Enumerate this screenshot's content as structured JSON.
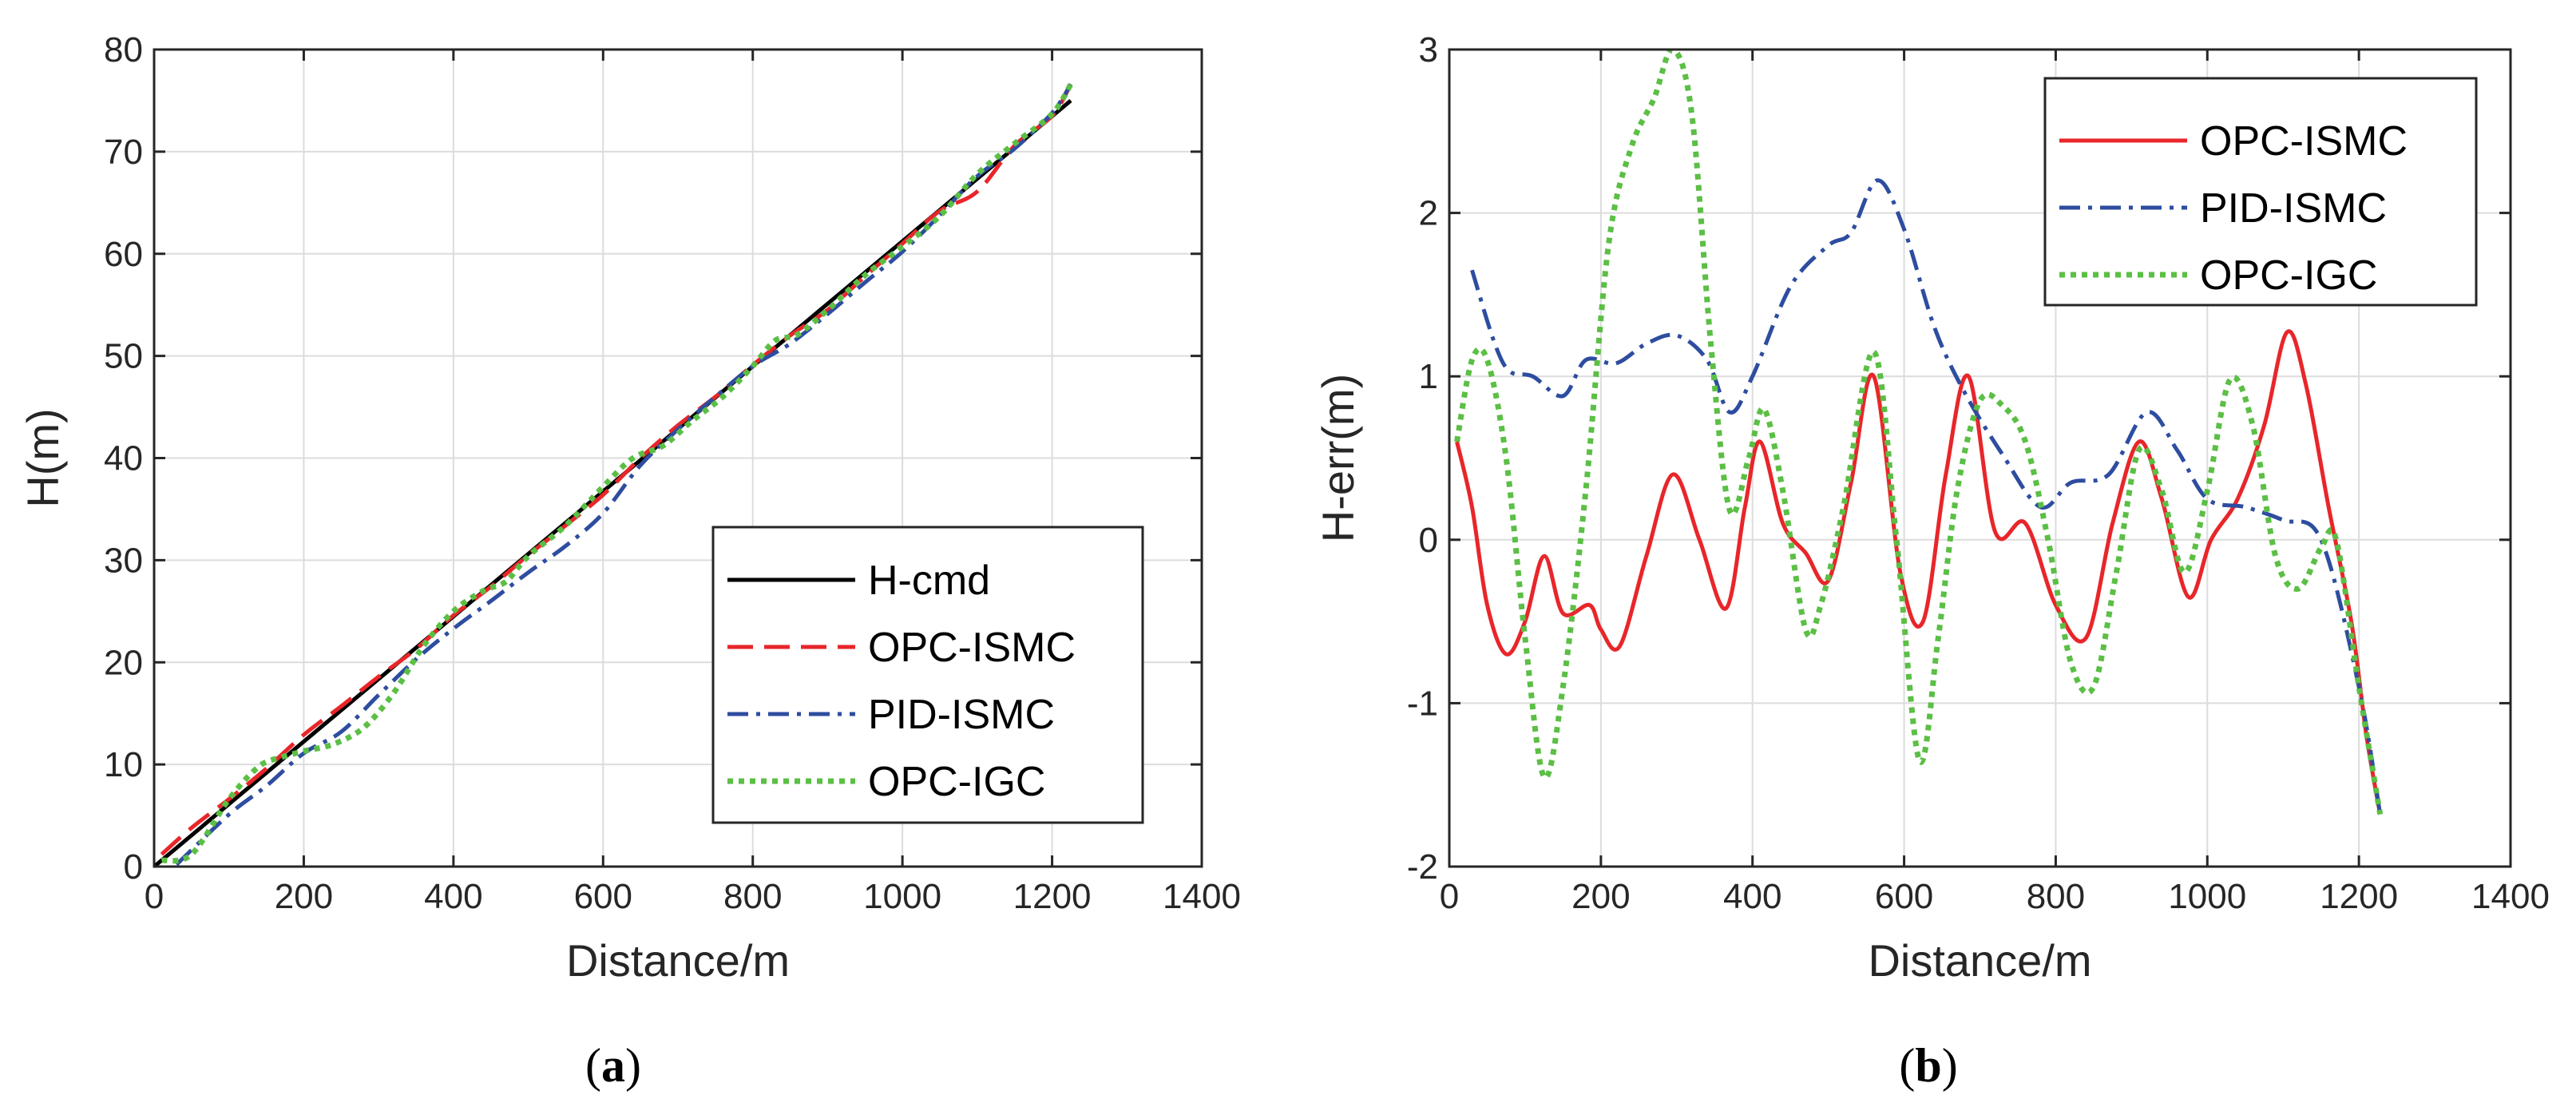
{
  "chart_data": [
    {
      "type": "line",
      "caption": {
        "open": "(",
        "letter": "a",
        "close": ")"
      },
      "xlabel": "Distance/m",
      "ylabel": "H(m)",
      "xlim": [
        0,
        1400
      ],
      "ylim": [
        0,
        80
      ],
      "xticks": [
        "0",
        "200",
        "400",
        "600",
        "800",
        "1000",
        "1200",
        "1400"
      ],
      "yticks": [
        "0",
        "10",
        "20",
        "30",
        "40",
        "50",
        "60",
        "70",
        "80"
      ],
      "grid": true,
      "legend_position": "bottom-right",
      "series": [
        {
          "name": "H-cmd",
          "color": "#000000",
          "style": "solid",
          "x": [
            0,
            1225
          ],
          "y": [
            0,
            75
          ]
        },
        {
          "name": "OPC-ISMC",
          "color": "#e8262a",
          "style": "dashed",
          "x": [
            10,
            50,
            100,
            150,
            200,
            250,
            300,
            350,
            400,
            450,
            500,
            550,
            600,
            650,
            700,
            750,
            800,
            850,
            900,
            950,
            1000,
            1050,
            1100,
            1150,
            1200,
            1225
          ],
          "y": [
            1.2,
            3.8,
            6.6,
            9.6,
            12.9,
            15.7,
            18.6,
            21.3,
            24.6,
            27.4,
            30.5,
            33.4,
            36.4,
            40.0,
            43.2,
            46.0,
            49.1,
            52.0,
            54.5,
            57.8,
            61.0,
            64.2,
            66.1,
            70.6,
            73.5,
            76.6
          ]
        },
        {
          "name": "PID-ISMC",
          "color": "#2e4da0",
          "style": "dashdot",
          "x": [
            30,
            100,
            150,
            200,
            250,
            300,
            350,
            400,
            450,
            500,
            550,
            600,
            650,
            700,
            750,
            800,
            850,
            900,
            950,
            1000,
            1050,
            1100,
            1150,
            1200,
            1225
          ],
          "y": [
            0.2,
            5.1,
            7.9,
            11.1,
            13.2,
            16.8,
            20.3,
            23.3,
            26.0,
            28.8,
            31.4,
            34.6,
            39.3,
            42.8,
            46.0,
            49.0,
            51.2,
            54.1,
            57.2,
            60.2,
            63.8,
            67.6,
            70.3,
            73.8,
            76.6
          ]
        },
        {
          "name": "OPC-IGC",
          "color": "#5bbf45",
          "style": "dotted",
          "x": [
            10,
            50,
            100,
            140,
            170,
            200,
            240,
            280,
            320,
            360,
            400,
            440,
            470,
            500,
            550,
            600,
            640,
            680,
            720,
            760,
            800,
            830,
            860,
            900,
            950,
            1000,
            1050,
            1100,
            1150,
            1200,
            1225
          ],
          "y": [
            0.6,
            1.2,
            6.6,
            9.8,
            10.7,
            11.3,
            12.0,
            13.6,
            17.0,
            21.6,
            25.0,
            27.0,
            27.9,
            30.4,
            33.4,
            37.2,
            40.0,
            41.2,
            43.7,
            46.0,
            49.0,
            51.5,
            52.1,
            54.5,
            57.9,
            60.7,
            63.7,
            67.8,
            70.8,
            73.7,
            76.6
          ]
        }
      ]
    },
    {
      "type": "line",
      "caption": {
        "open": "(",
        "letter": "b",
        "close": ")"
      },
      "xlabel": "Distance/m",
      "ylabel": "H-err(m)",
      "xlim": [
        0,
        1400
      ],
      "ylim": [
        -2,
        3
      ],
      "xticks": [
        "0",
        "200",
        "400",
        "600",
        "800",
        "1000",
        "1200",
        "1400"
      ],
      "yticks": [
        "-2",
        "-1",
        "0",
        "1",
        "2",
        "3"
      ],
      "grid": true,
      "legend_position": "top-right",
      "series": [
        {
          "name": "OPC-ISMC",
          "color": "#e8262a",
          "style": "solid",
          "x": [
            10,
            30,
            50,
            75,
            100,
            125,
            150,
            185,
            200,
            225,
            260,
            295,
            330,
            365,
            390,
            410,
            440,
            470,
            500,
            530,
            560,
            595,
            625,
            655,
            685,
            720,
            760,
            800,
            840,
            875,
            910,
            940,
            975,
            1005,
            1040,
            1075,
            1105,
            1130,
            1160,
            1190,
            1210,
            1228
          ],
          "y": [
            0.6,
            0.2,
            -0.4,
            -0.7,
            -0.5,
            -0.1,
            -0.45,
            -0.4,
            -0.55,
            -0.65,
            -0.1,
            0.4,
            0.0,
            -0.42,
            0.2,
            0.6,
            0.1,
            -0.08,
            -0.25,
            0.35,
            1.0,
            -0.2,
            -0.5,
            0.4,
            1.0,
            0.05,
            0.1,
            -0.4,
            -0.6,
            0.1,
            0.6,
            0.25,
            -0.35,
            0.0,
            0.25,
            0.7,
            1.27,
            0.95,
            0.2,
            -0.5,
            -1.2,
            -1.68
          ]
        },
        {
          "name": "PID-ISMC",
          "color": "#2e4da0",
          "style": "dashdot",
          "x": [
            30,
            60,
            80,
            110,
            150,
            180,
            220,
            260,
            300,
            340,
            370,
            400,
            450,
            500,
            530,
            565,
            600,
            640,
            680,
            730,
            780,
            820,
            870,
            920,
            960,
            1000,
            1050,
            1100,
            1150,
            1200,
            1228
          ],
          "y": [
            1.65,
            1.2,
            1.03,
            1.0,
            0.88,
            1.1,
            1.08,
            1.2,
            1.25,
            1.1,
            0.78,
            1.0,
            1.55,
            1.8,
            1.88,
            2.2,
            1.9,
            1.3,
            0.9,
            0.52,
            0.2,
            0.35,
            0.4,
            0.78,
            0.55,
            0.25,
            0.2,
            0.12,
            0.0,
            -0.9,
            -1.68
          ]
        },
        {
          "name": "OPC-IGC",
          "color": "#5bbf45",
          "style": "dotted",
          "x": [
            10,
            30,
            50,
            75,
            100,
            125,
            150,
            180,
            210,
            240,
            270,
            295,
            320,
            345,
            370,
            395,
            415,
            440,
            470,
            490,
            520,
            560,
            590,
            620,
            645,
            670,
            700,
            730,
            760,
            790,
            820,
            850,
            880,
            910,
            940,
            970,
            1000,
            1030,
            1060,
            1090,
            1120,
            1150,
            1170,
            1200,
            1228
          ],
          "y": [
            0.6,
            1.1,
            1.1,
            0.5,
            -0.6,
            -1.45,
            -0.9,
            0.3,
            1.8,
            2.4,
            2.7,
            3.0,
            2.6,
            1.2,
            0.18,
            0.5,
            0.8,
            0.3,
            -0.55,
            -0.4,
            0.2,
            1.15,
            0.0,
            -1.35,
            -0.6,
            0.3,
            0.85,
            0.82,
            0.6,
            0.0,
            -0.75,
            -0.9,
            -0.2,
            0.55,
            0.3,
            -0.2,
            0.3,
            0.98,
            0.7,
            -0.1,
            -0.3,
            -0.05,
            0.0,
            -0.9,
            -1.68
          ]
        }
      ]
    }
  ]
}
